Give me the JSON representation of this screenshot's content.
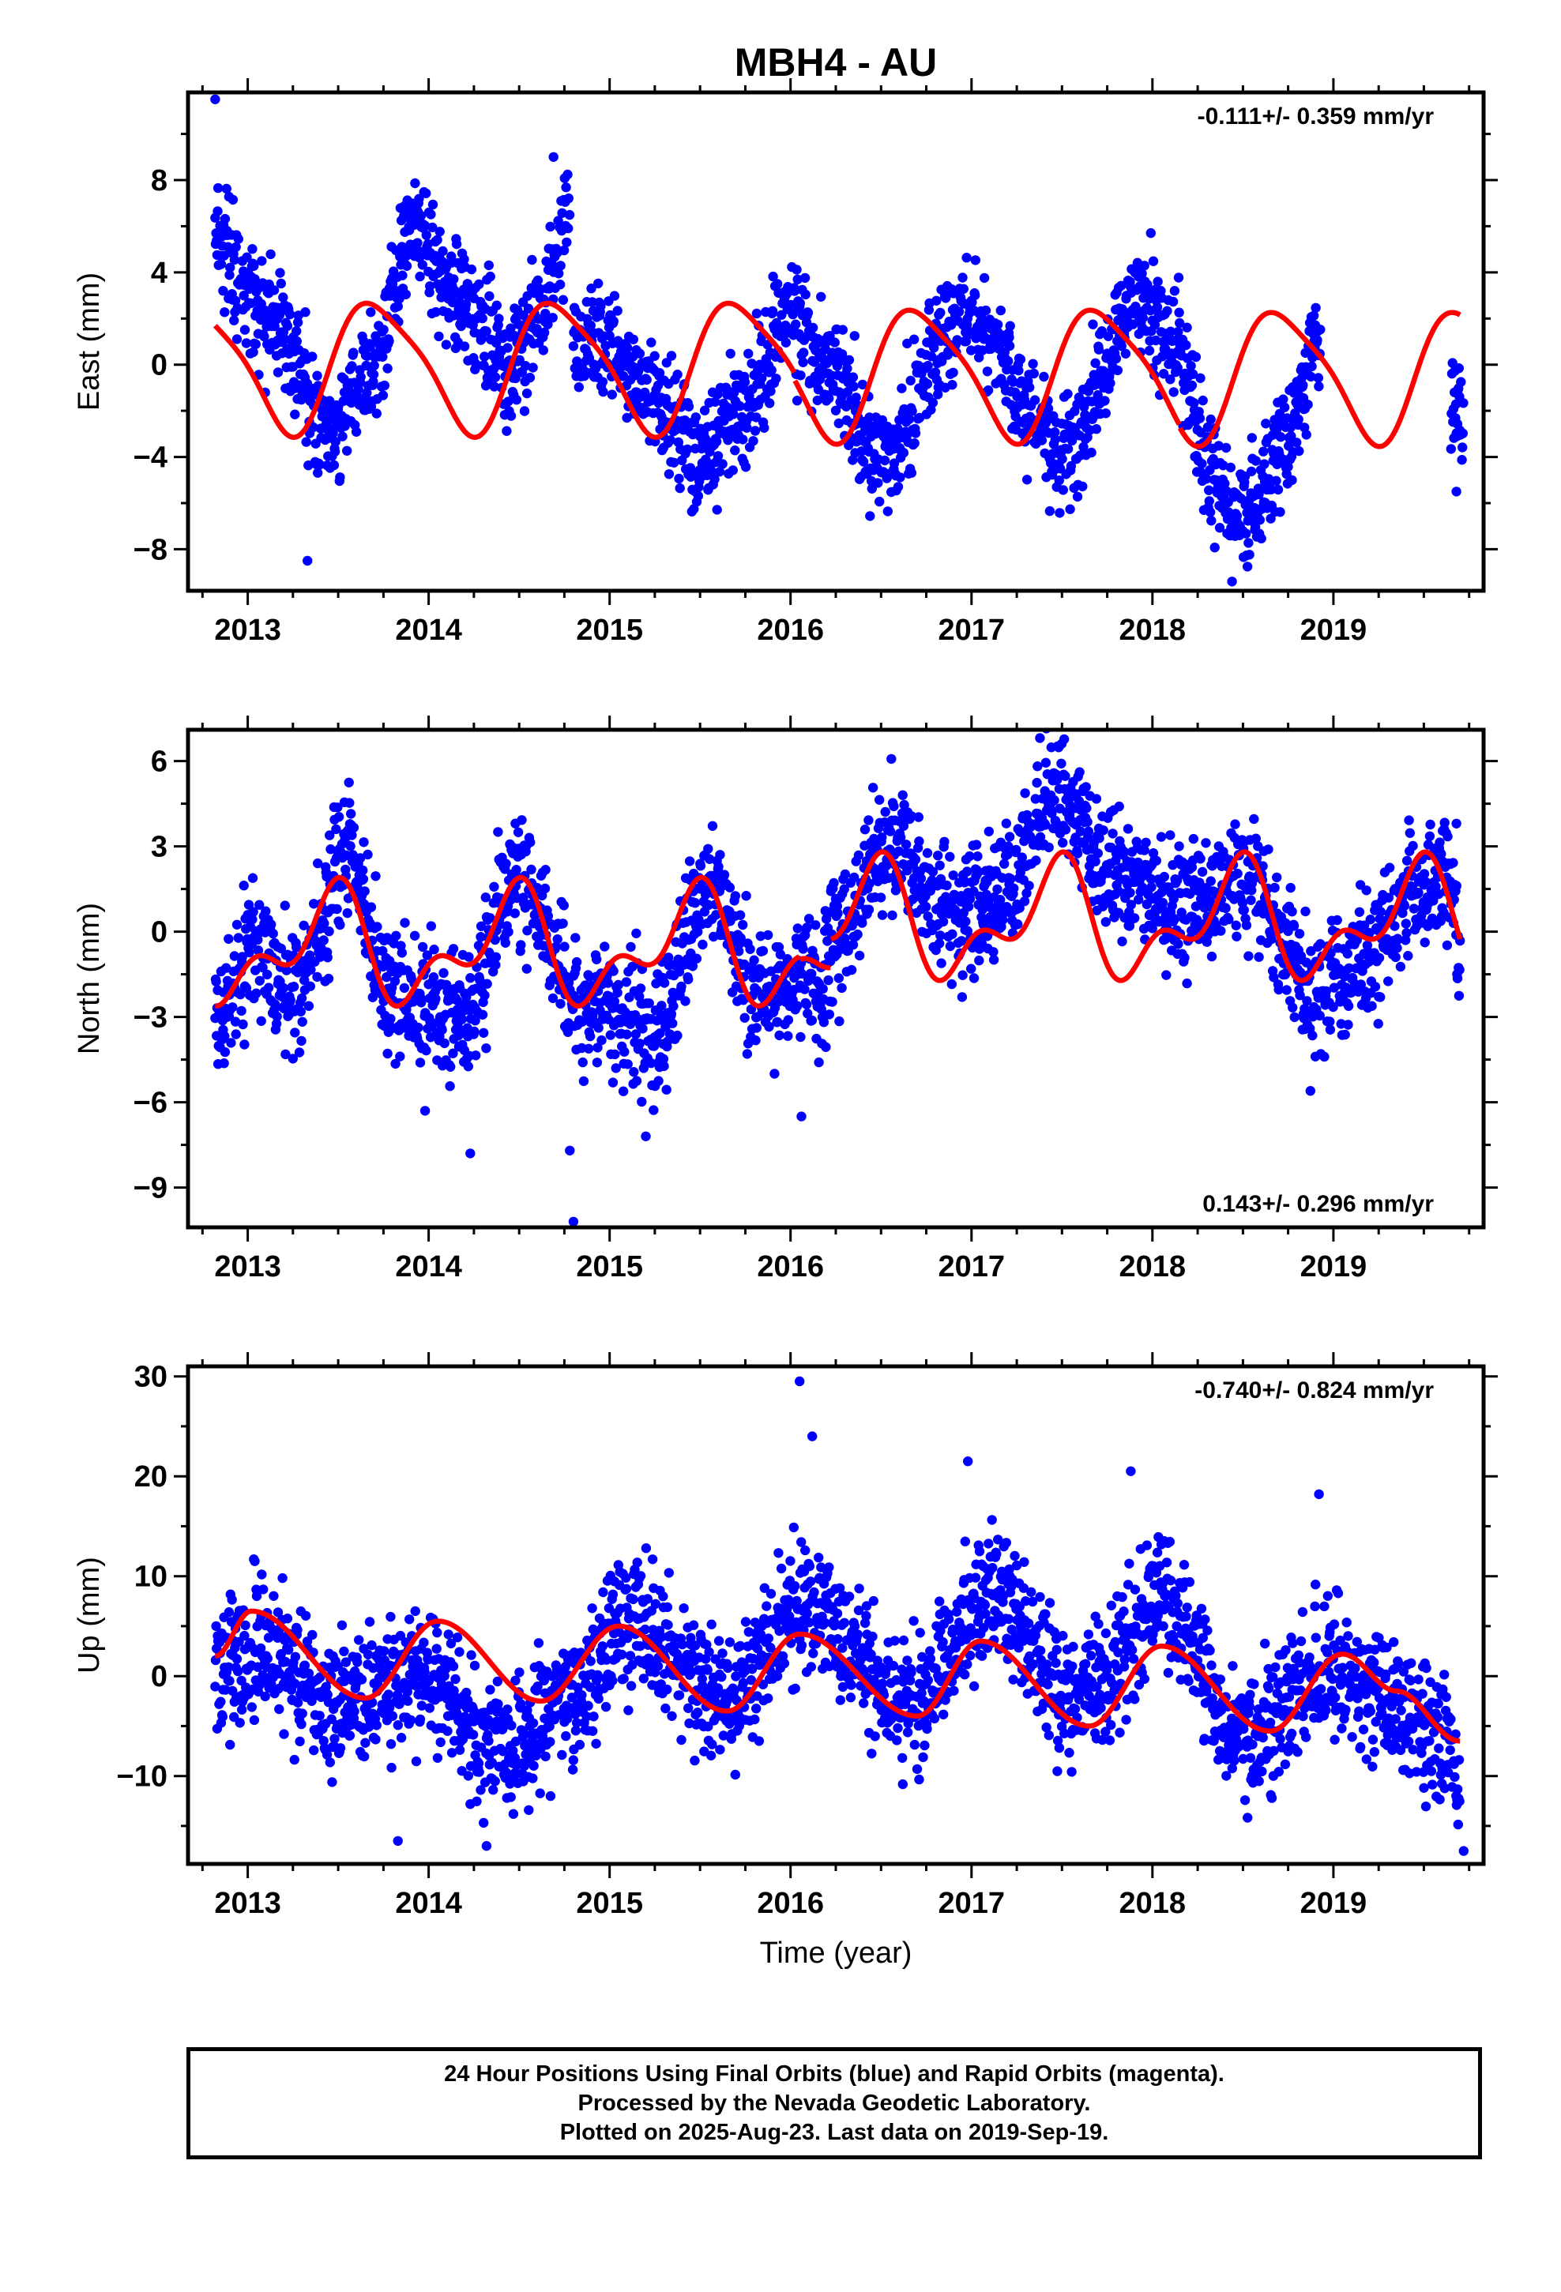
{
  "title": "MBH4 - AU",
  "xlabel": "Time (year)",
  "footer": {
    "line1": "24 Hour Positions Using Final Orbits (blue) and Rapid Orbits (magenta).",
    "line2": "Processed by the Nevada Geodetic Laboratory.",
    "line3": "Plotted on 2025-Aug-23. Last data on 2019-Sep-19."
  },
  "colors": {
    "final_orbits": "#0000ff",
    "model_fit": "#ff0000",
    "frame": "#000000"
  },
  "chart_data": [
    {
      "type": "scatter",
      "ylabel": "East (mm)",
      "rate_text": "-0.111+/- 0.359 mm/yr",
      "rate_position": "top-right",
      "xlim": [
        2012.67,
        2019.83
      ],
      "ylim": [
        -9.8,
        11.8
      ],
      "yticks": [
        -8,
        -4,
        0,
        4,
        8
      ],
      "ytick_labels": [
        "−8",
        "−4",
        "0",
        "4",
        "8"
      ],
      "xticks": [
        2013,
        2014,
        2015,
        2016,
        2017,
        2018,
        2019
      ],
      "xtick_labels": [
        "2013",
        "2014",
        "2015",
        "2016",
        "2017",
        "2018",
        "2019"
      ],
      "grid": false,
      "series": [
        {
          "role": "daily positions",
          "segments": [
            {
              "range": [
                2012.82,
                2013.9
              ],
              "anchors": [
                [
                  2012.82,
                  5.5
                ],
                [
                  2013.15,
                  1.5
                ],
                [
                  2013.45,
                  -3.0
                ],
                [
                  2013.7,
                  0.0
                ],
                [
                  2013.9,
                  6.0
                ]
              ]
            },
            {
              "range": [
                2013.9,
                2014.78
              ],
              "anchors": [
                [
                  2013.9,
                  6.0
                ],
                [
                  2014.15,
                  3.0
                ],
                [
                  2014.45,
                  0.0
                ],
                [
                  2014.6,
                  2.0
                ],
                [
                  2014.78,
                  6.5
                ]
              ]
            },
            {
              "range": [
                2014.8,
                2016.02
              ],
              "anchors": [
                [
                  2014.8,
                  0.5
                ],
                [
                  2015.0,
                  1.0
                ],
                [
                  2015.2,
                  -1.0
                ],
                [
                  2015.5,
                  -4.2
                ],
                [
                  2015.7,
                  -2.0
                ],
                [
                  2016.0,
                  2.0
                ]
              ]
            },
            {
              "range": [
                2016.02,
                2018.15
              ],
              "anchors": [
                [
                  2016.02,
                  2.0
                ],
                [
                  2016.2,
                  0.0
                ],
                [
                  2016.5,
                  -4.0
                ],
                [
                  2016.95,
                  2.0
                ],
                [
                  2017.5,
                  -3.5
                ],
                [
                  2017.95,
                  3.0
                ],
                [
                  2018.15,
                  0.5
                ]
              ]
            },
            {
              "range": [
                2018.15,
                2018.93
              ],
              "anchors": [
                [
                  2018.15,
                  0.5
                ],
                [
                  2018.3,
                  -4.0
                ],
                [
                  2018.45,
                  -7.0
                ],
                [
                  2018.7,
                  -4.0
                ],
                [
                  2018.93,
                  1.0
                ]
              ]
            },
            {
              "range": [
                2019.65,
                2019.72
              ],
              "anchors": [
                [
                  2019.65,
                  -1.5
                ],
                [
                  2019.72,
                  -2.5
                ]
              ]
            }
          ],
          "scatter_sd": 1.2,
          "outliers": [
            [
              2012.82,
              11.5
            ],
            [
              2013.33,
              -8.5
            ],
            [
              2014.69,
              9.0
            ],
            [
              2018.44,
              -9.4
            ],
            [
              2019.68,
              -5.5
            ]
          ]
        },
        {
          "role": "seasonal model fit",
          "offsets": [
            [
              2012.82,
              0.0
            ],
            [
              2013.9,
              0.0
            ],
            [
              2014.8,
              0.0
            ],
            [
              2016.02,
              -0.3
            ],
            [
              2018.15,
              -0.4
            ],
            [
              2019.7,
              -0.9
            ]
          ],
          "amp1": 2.75,
          "phase1": 0.72,
          "amp2": 0.55,
          "phase2": 0.55
        }
      ]
    },
    {
      "type": "scatter",
      "ylabel": "North (mm)",
      "rate_text": "0.143+/- 0.296 mm/yr",
      "rate_position": "bottom-right",
      "xlim": [
        2012.67,
        2019.83
      ],
      "ylim": [
        -10.4,
        7.1
      ],
      "yticks": [
        -9,
        -6,
        -3,
        0,
        3,
        6
      ],
      "ytick_labels": [
        "−9",
        "−6",
        "−3",
        "0",
        "3",
        "6"
      ],
      "xticks": [
        2013,
        2014,
        2015,
        2016,
        2017,
        2018,
        2019
      ],
      "xtick_labels": [
        "2013",
        "2014",
        "2015",
        "2016",
        "2017",
        "2018",
        "2019"
      ],
      "grid": false,
      "series": [
        {
          "role": "daily positions",
          "segments": [
            {
              "range": [
                2012.82,
                2016.05
              ],
              "anchors": [
                [
                  2012.82,
                  -3.0
                ],
                [
                  2013.05,
                  -0.5
                ],
                [
                  2013.25,
                  -2.0
                ],
                [
                  2013.55,
                  2.5
                ],
                [
                  2013.8,
                  -2.5
                ],
                [
                  2014.2,
                  -3.0
                ],
                [
                  2014.5,
                  2.0
                ],
                [
                  2014.85,
                  -2.5
                ],
                [
                  2015.25,
                  -3.5
                ],
                [
                  2015.55,
                  1.5
                ],
                [
                  2015.8,
                  -2.0
                ],
                [
                  2016.05,
                  -2.0
                ]
              ]
            },
            {
              "range": [
                2016.05,
                2016.22
              ],
              "anchors": [
                [
                  2016.05,
                  -2.0
                ],
                [
                  2016.22,
                  -1.5
                ]
              ]
            },
            {
              "range": [
                2016.22,
                2019.7
              ],
              "anchors": [
                [
                  2016.22,
                  -0.5
                ],
                [
                  2016.55,
                  3.0
                ],
                [
                  2016.9,
                  0.5
                ],
                [
                  2017.2,
                  1.5
                ],
                [
                  2017.48,
                  5.0
                ],
                [
                  2017.75,
                  2.5
                ],
                [
                  2018.1,
                  1.0
                ],
                [
                  2018.55,
                  2.0
                ],
                [
                  2018.75,
                  -1.0
                ],
                [
                  2018.9,
                  -2.0
                ],
                [
                  2019.65,
                  2.0
                ],
                [
                  2019.7,
                  -1.0
                ]
              ]
            }
          ],
          "scatter_sd": 1.1,
          "outliers": [
            [
              2014.8,
              -10.2
            ],
            [
              2014.78,
              -7.7
            ],
            [
              2014.23,
              -7.8
            ],
            [
              2013.98,
              -6.3
            ],
            [
              2015.2,
              -7.2
            ],
            [
              2016.06,
              -6.5
            ],
            [
              2016.62,
              4.8
            ],
            [
              2019.68,
              3.8
            ]
          ]
        },
        {
          "role": "seasonal model fit",
          "offsets": [
            [
              2012.82,
              -0.6
            ],
            [
              2016.05,
              -0.7
            ],
            [
              2016.22,
              0.3
            ],
            [
              2019.7,
              1.0
            ]
          ],
          "amp1": 1.6,
          "phase1": 0.45,
          "amp2": 1.05,
          "phase2": 0.53
        }
      ]
    },
    {
      "type": "scatter",
      "ylabel": "Up (mm)",
      "rate_text": "-0.740+/- 0.824 mm/yr",
      "rate_position": "top-right",
      "xlim": [
        2012.67,
        2019.83
      ],
      "ylim": [
        -18.8,
        31.0
      ],
      "yticks": [
        -10,
        0,
        10,
        20,
        30
      ],
      "ytick_labels": [
        "−10",
        "0",
        "10",
        "20",
        "30"
      ],
      "xticks": [
        2013,
        2014,
        2015,
        2016,
        2017,
        2018,
        2019
      ],
      "xtick_labels": [
        "2013",
        "2014",
        "2015",
        "2016",
        "2017",
        "2018",
        "2019"
      ],
      "grid": false,
      "series": [
        {
          "role": "daily positions",
          "segments": [
            {
              "range": [
                2012.82,
                2019.7
              ],
              "anchors": [
                [
                  2012.82,
                  0.0
                ],
                [
                  2013.05,
                  3.0
                ],
                [
                  2013.5,
                  -3.0
                ],
                [
                  2014.0,
                  0.0
                ],
                [
                  2014.4,
                  -7.0
                ],
                [
                  2014.8,
                  -2.0
                ],
                [
                  2015.1,
                  6.0
                ],
                [
                  2015.6,
                  -2.0
                ],
                [
                  2016.1,
                  7.0
                ],
                [
                  2016.65,
                  -3.0
                ],
                [
                  2017.1,
                  8.0
                ],
                [
                  2017.6,
                  -2.0
                ],
                [
                  2018.05,
                  7.0
                ],
                [
                  2018.5,
                  -6.0
                ],
                [
                  2018.9,
                  0.0
                ],
                [
                  2019.65,
                  -6.0
                ],
                [
                  2019.7,
                  -12.0
                ]
              ]
            }
          ],
          "scatter_sd": 3.2,
          "outliers": [
            [
              2016.05,
              29.5
            ],
            [
              2016.12,
              24.0
            ],
            [
              2016.98,
              21.5
            ],
            [
              2017.88,
              20.5
            ],
            [
              2018.92,
              18.2
            ],
            [
              2014.32,
              -17.0
            ],
            [
              2013.83,
              -16.5
            ],
            [
              2019.72,
              -17.5
            ]
          ]
        },
        {
          "role": "seasonal model fit",
          "knots": [
            [
              2012.82,
              2.0
            ],
            [
              2013.02,
              6.5
            ],
            [
              2013.65,
              -2.2
            ],
            [
              2014.05,
              5.5
            ],
            [
              2014.62,
              -2.5
            ],
            [
              2015.05,
              5.0
            ],
            [
              2015.65,
              -3.5
            ],
            [
              2016.05,
              4.2
            ],
            [
              2016.7,
              -4.0
            ],
            [
              2017.05,
              3.5
            ],
            [
              2017.65,
              -5.0
            ],
            [
              2018.05,
              3.0
            ],
            [
              2018.65,
              -5.5
            ],
            [
              2019.05,
              2.2
            ],
            [
              2019.35,
              -1.5
            ],
            [
              2019.7,
              -6.5
            ]
          ]
        }
      ]
    }
  ]
}
